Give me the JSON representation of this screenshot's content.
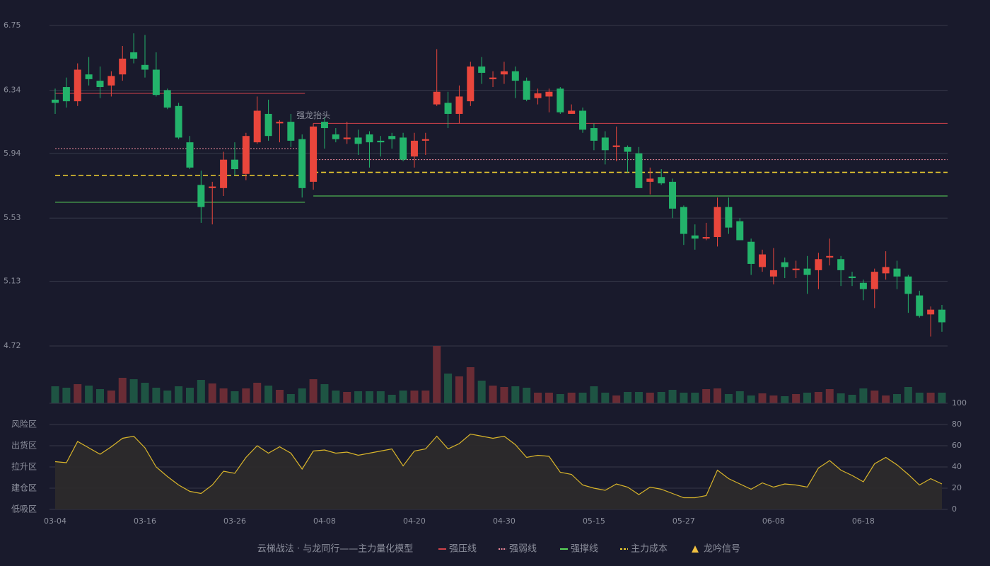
{
  "chart_data": [
    {
      "type": "candlestick",
      "title": "云梯战法 · 与龙同行——主力量化模型",
      "x": [
        "03-04",
        null,
        null,
        null,
        null,
        null,
        null,
        null,
        "03-16",
        null,
        null,
        null,
        null,
        null,
        null,
        null,
        "03-26",
        null,
        null,
        null,
        null,
        null,
        null,
        null,
        "04-08",
        null,
        null,
        null,
        null,
        null,
        null,
        null,
        "04-20",
        null,
        null,
        null,
        null,
        null,
        null,
        null,
        "04-30",
        null,
        null,
        null,
        null,
        null,
        null,
        null,
        "05-15",
        null,
        null,
        null,
        null,
        null,
        null,
        null,
        "05-27",
        null,
        null,
        null,
        null,
        null,
        null,
        null,
        "06-08",
        null,
        null,
        null,
        null,
        null,
        null,
        null,
        "06-18",
        null,
        null,
        null,
        null,
        null,
        null,
        null
      ],
      "open": [
        6.28,
        6.36,
        6.27,
        6.44,
        6.4,
        6.37,
        6.44,
        6.58,
        6.5,
        6.47,
        6.34,
        6.24,
        6.01,
        5.74,
        5.72,
        5.72,
        5.9,
        5.81,
        6.01,
        6.19,
        6.13,
        6.14,
        6.03,
        5.76,
        6.14,
        6.06,
        6.03,
        6.04,
        6.06,
        6.02,
        6.05,
        6.04,
        5.92,
        6.02,
        6.25,
        6.26,
        6.19,
        6.27,
        6.49,
        6.41,
        6.44,
        6.46,
        6.4,
        6.29,
        6.3,
        6.35,
        6.19,
        6.21,
        6.1,
        6.04,
        5.98,
        5.98,
        5.94,
        5.76,
        5.79,
        5.76,
        5.6,
        5.42,
        5.4,
        5.41,
        5.6,
        5.51,
        5.38,
        5.22,
        5.16,
        5.25,
        5.2,
        5.21,
        5.2,
        5.28,
        5.27,
        5.16,
        5.12,
        5.08,
        5.18,
        5.21,
        5.16,
        5.04,
        4.92,
        4.95
      ],
      "close": [
        6.26,
        6.27,
        6.47,
        6.41,
        6.36,
        6.43,
        6.54,
        6.54,
        6.47,
        6.31,
        6.23,
        6.04,
        5.85,
        5.6,
        5.73,
        5.9,
        5.84,
        6.05,
        6.21,
        6.05,
        6.14,
        6.02,
        5.72,
        6.11,
        6.1,
        6.03,
        6.04,
        6.0,
        6.01,
        6.01,
        6.03,
        5.9,
        6.02,
        6.03,
        6.33,
        6.19,
        6.3,
        6.49,
        6.45,
        6.42,
        6.46,
        6.4,
        6.28,
        6.32,
        6.33,
        6.2,
        6.21,
        6.09,
        6.02,
        5.96,
        5.99,
        5.95,
        5.72,
        5.78,
        5.75,
        5.59,
        5.43,
        5.4,
        5.41,
        5.6,
        5.47,
        5.39,
        5.24,
        5.3,
        5.2,
        5.22,
        5.21,
        5.17,
        5.27,
        5.29,
        5.2,
        5.15,
        5.08,
        5.19,
        5.22,
        5.16,
        5.05,
        4.91,
        4.95,
        4.87
      ],
      "low": [
        6.19,
        6.23,
        6.24,
        6.37,
        6.29,
        6.3,
        6.4,
        6.51,
        6.42,
        6.3,
        6.22,
        6.03,
        5.84,
        5.5,
        5.49,
        5.67,
        5.8,
        5.77,
        6.0,
        6.02,
        6.01,
        5.98,
        5.66,
        5.71,
        5.97,
        6.01,
        6.0,
        5.93,
        5.85,
        5.92,
        5.97,
        5.89,
        5.85,
        5.93,
        6.24,
        6.1,
        6.13,
        6.24,
        6.38,
        6.36,
        6.38,
        6.29,
        6.27,
        6.25,
        6.2,
        6.19,
        6.19,
        6.07,
        5.96,
        5.87,
        5.89,
        5.82,
        5.72,
        5.68,
        5.74,
        5.53,
        5.36,
        5.33,
        5.39,
        5.35,
        5.43,
        5.39,
        5.17,
        5.19,
        5.11,
        5.15,
        5.15,
        5.05,
        5.08,
        5.23,
        5.1,
        5.1,
        5.01,
        4.96,
        5.14,
        5.08,
        4.93,
        4.9,
        4.78,
        4.81
      ],
      "high": [
        6.35,
        6.42,
        6.51,
        6.55,
        6.49,
        6.46,
        6.62,
        6.7,
        6.69,
        6.58,
        6.35,
        6.26,
        6.05,
        5.83,
        5.76,
        5.95,
        6.01,
        6.07,
        6.3,
        6.28,
        6.15,
        6.19,
        6.06,
        6.13,
        6.17,
        6.1,
        6.14,
        6.09,
        6.08,
        6.05,
        6.07,
        6.07,
        6.07,
        6.07,
        6.6,
        6.33,
        6.37,
        6.52,
        6.55,
        6.46,
        6.52,
        6.49,
        6.42,
        6.35,
        6.35,
        6.36,
        6.25,
        6.23,
        6.13,
        6.08,
        6.11,
        5.99,
        5.98,
        5.85,
        5.84,
        5.78,
        5.61,
        5.49,
        5.5,
        5.66,
        5.66,
        5.53,
        5.4,
        5.33,
        5.34,
        5.28,
        5.26,
        5.29,
        5.31,
        5.4,
        5.29,
        5.19,
        5.14,
        5.21,
        5.32,
        5.26,
        5.17,
        5.07,
        4.97,
        4.98
      ],
      "ylim": [
        4.72,
        6.75
      ],
      "yticks": [
        4.72,
        5.13,
        5.53,
        5.94,
        6.34,
        6.75
      ],
      "grid": true,
      "up_color": "#e9463c",
      "down_color": "#23b36b",
      "levels": [
        {
          "name": "强压线",
          "color": "#d2424a",
          "style": "solid",
          "segments": [
            {
              "start": 0,
              "end": 22,
              "value": 6.32
            },
            {
              "start": 23,
              "end": 79,
              "value": 6.13
            }
          ]
        },
        {
          "name": "强弱线",
          "color": "#f08a9a",
          "style": "dotted",
          "segments": [
            {
              "start": 0,
              "end": 22,
              "value": 5.97
            },
            {
              "start": 23,
              "end": 79,
              "value": 5.9
            }
          ]
        },
        {
          "name": "强撑线",
          "color": "#5ad85a",
          "style": "solid",
          "segments": [
            {
              "start": 0,
              "end": 22,
              "value": 5.63
            },
            {
              "start": 23,
              "end": 79,
              "value": 5.67
            }
          ]
        },
        {
          "name": "主力成本",
          "color": "#f0d030",
          "style": "dashed",
          "segments": [
            {
              "start": 0,
              "end": 22,
              "value": 5.8
            },
            {
              "start": 23,
              "end": 79,
              "value": 5.82
            }
          ]
        }
      ],
      "signal": {
        "name": "龙吟信号",
        "color": "#f0c040"
      },
      "annotations": [
        {
          "text": "强龙抬头",
          "index": 23,
          "color": "#8fd3ff"
        }
      ]
    },
    {
      "type": "bar",
      "name": "volume",
      "up_color": "#6a2c35",
      "down_color": "#1e5443",
      "values": [
        24,
        22,
        27,
        25,
        20,
        18,
        36,
        34,
        29,
        22,
        18,
        24,
        22,
        33,
        28,
        21,
        17,
        21,
        29,
        25,
        19,
        13,
        21,
        34,
        27,
        18,
        16,
        17,
        17,
        17,
        12,
        18,
        18,
        18,
        81,
        42,
        38,
        51,
        32,
        25,
        23,
        24,
        22,
        15,
        15,
        13,
        15,
        15,
        24,
        15,
        11,
        16,
        16,
        15,
        16,
        19,
        15,
        15,
        20,
        21,
        13,
        17,
        11,
        14,
        11,
        10,
        13,
        15,
        16,
        20,
        14,
        12,
        21,
        18,
        11,
        13,
        23,
        15,
        15,
        15
      ]
    },
    {
      "type": "area",
      "color": "#d9b52a",
      "fill": "#2e2b2b",
      "values": [
        45,
        44,
        64,
        58,
        52,
        59,
        67,
        69,
        58,
        40,
        31,
        23,
        17,
        15,
        23,
        36,
        34,
        49,
        60,
        53,
        59,
        53,
        38,
        55,
        56,
        53,
        54,
        51,
        53,
        55,
        57,
        41,
        55,
        57,
        69,
        57,
        62,
        71,
        69,
        67,
        69,
        61,
        49,
        51,
        50,
        35,
        33,
        23,
        20,
        18,
        24,
        21,
        14,
        21,
        19,
        15,
        11,
        11,
        13,
        37,
        29,
        24,
        19,
        25,
        21,
        24,
        23,
        21,
        39,
        46,
        37,
        32,
        26,
        43,
        49,
        42,
        33,
        23,
        29,
        24
      ],
      "ylim": [
        0,
        100
      ],
      "yticks": [
        0,
        20,
        40,
        60,
        80,
        100
      ],
      "tick_colors": [
        "#e8404a",
        "#f08a30",
        "#4aa0ff",
        "#e040e0",
        "#f0a030",
        "#40e040"
      ],
      "zone_labels": [
        "低吸区",
        "建仓区",
        "拉升区",
        "出货区",
        "风险区"
      ],
      "zone_colors": [
        "#f04050",
        "#f06040",
        "#4aa0ff",
        "#e040e0",
        "#f0a030"
      ]
    }
  ]
}
